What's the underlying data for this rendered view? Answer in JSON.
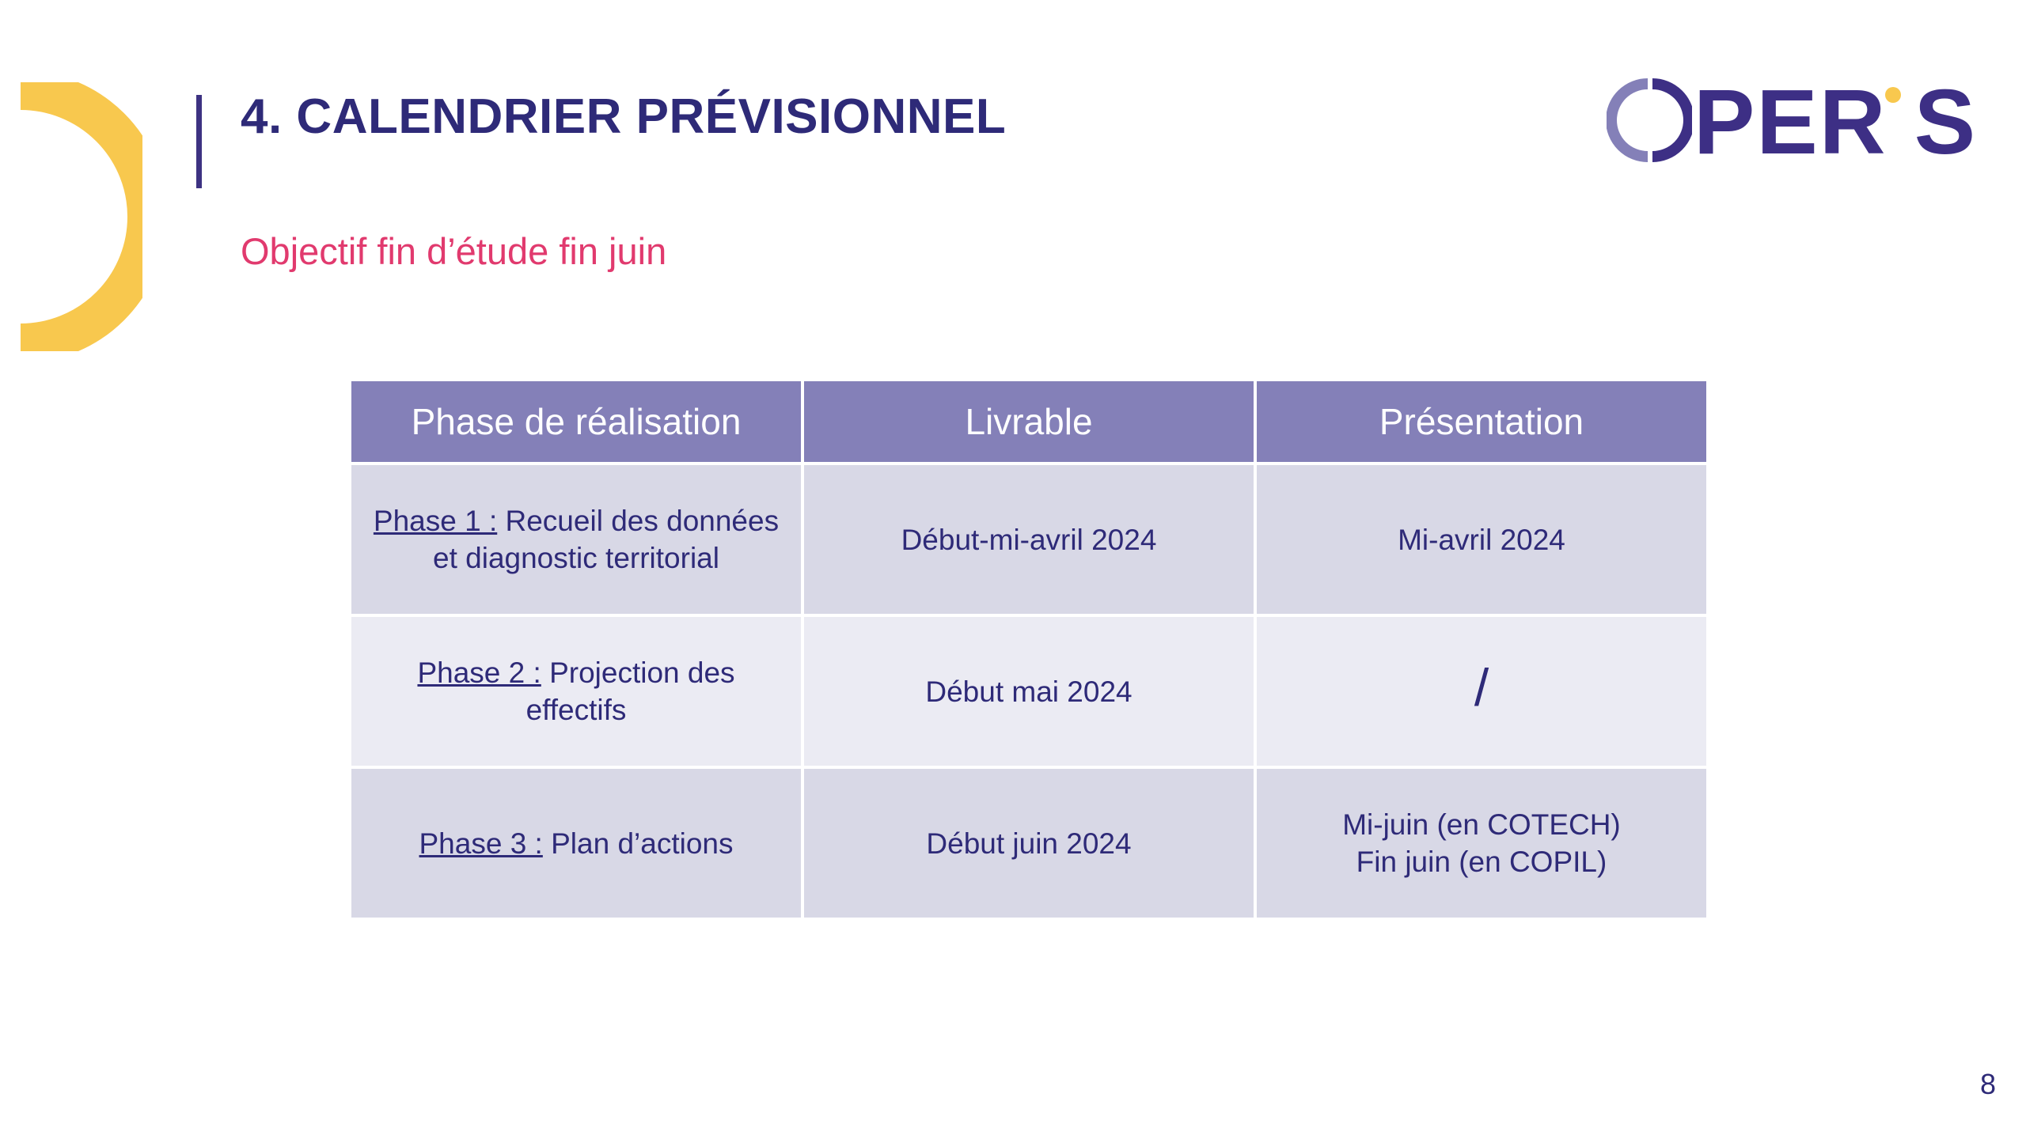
{
  "title": "4. CALENDRIER PRÉVISIONNEL",
  "subtitle": "Objectif fin d’étude fin juin",
  "logo": {
    "text": "OPERiS",
    "letters": "PER S",
    "icon": "operis-logo"
  },
  "colors": {
    "title": "#2e2a78",
    "subtitle": "#e13a6e",
    "accent_yellow": "#f8c84e",
    "header_bg": "#8480b8",
    "row_dark": "#d8d8e6",
    "row_light": "#ebebf3"
  },
  "table": {
    "headers": [
      "Phase de réalisation",
      "Livrable",
      "Présentation"
    ],
    "rows": [
      {
        "phase_label": "Phase 1 :",
        "phase_text": " Recueil des données et diagnostic territorial",
        "livrable": "Début-mi-avril 2024",
        "presentation_line1": "Mi-avril 2024",
        "presentation_line2": ""
      },
      {
        "phase_label": "Phase 2 :",
        "phase_text": " Projection des effectifs",
        "livrable": "Début mai 2024",
        "presentation_line1": "/",
        "presentation_line2": ""
      },
      {
        "phase_label": "Phase 3 :",
        "phase_text": " Plan d’actions",
        "livrable": "Début juin 2024",
        "presentation_line1": "Mi-juin (en COTECH)",
        "presentation_line2": "Fin juin (en COPIL)"
      }
    ]
  },
  "page_number": "8"
}
